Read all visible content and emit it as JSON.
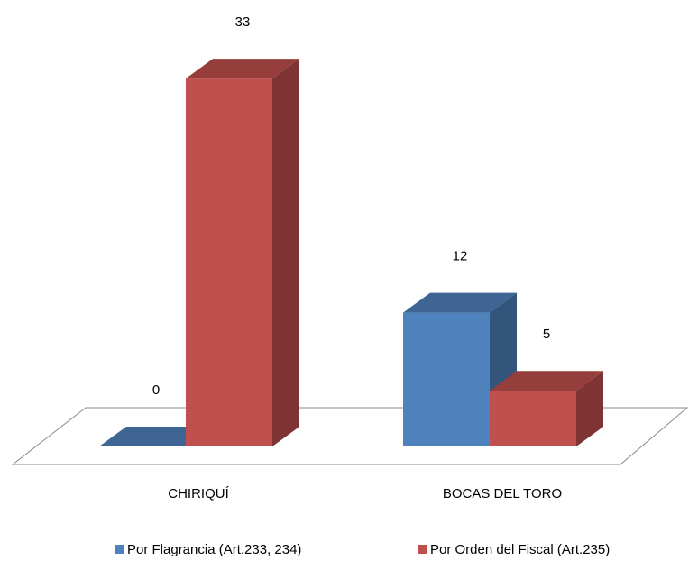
{
  "chart_data": {
    "type": "bar",
    "categories": [
      "CHIRIQUÍ",
      "BOCAS DEL TORO"
    ],
    "series": [
      {
        "name": "Por Flagrancia (Art.233, 234)",
        "color": "#4f81bd",
        "values": [
          0,
          12
        ]
      },
      {
        "name": "Por Orden del Fiscal (Art.235)",
        "color": "#c0504d",
        "values": [
          33,
          5
        ]
      }
    ],
    "legend": "bottom"
  }
}
